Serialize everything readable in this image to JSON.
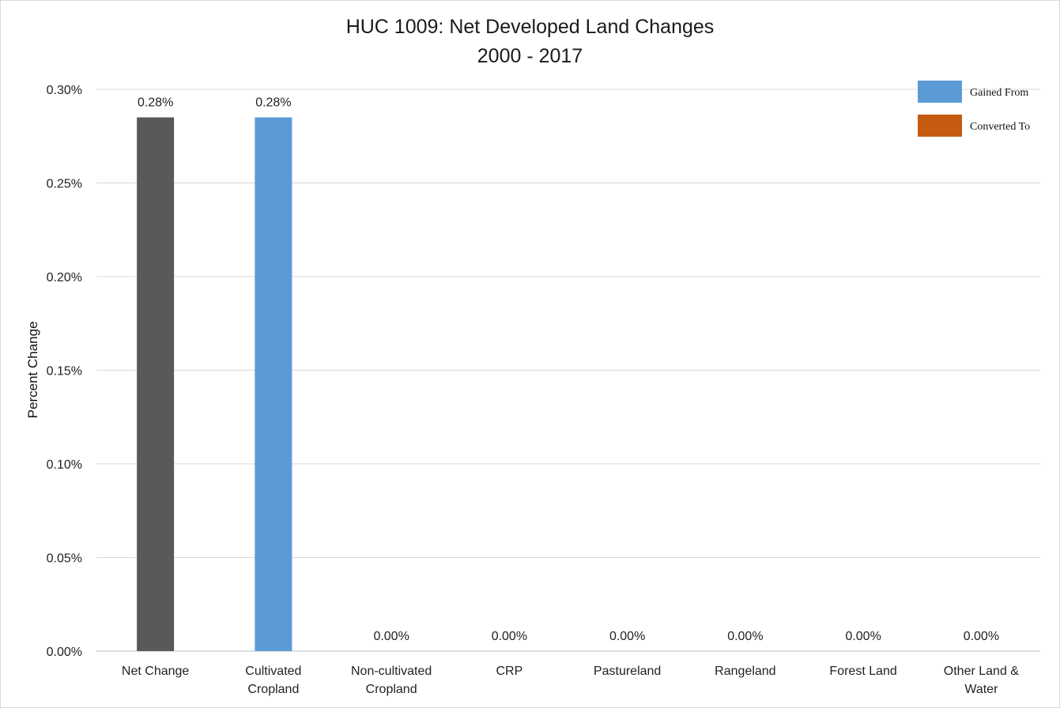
{
  "chart_data": {
    "type": "bar",
    "title": "HUC 1009: Net Developed Land Changes",
    "subtitle": "2000 - 2017",
    "ylabel": "Percent Change",
    "xlabel": "",
    "ylim": [
      0,
      0.3
    ],
    "y_ticks": [
      {
        "value": 0.0,
        "label": "0.00%"
      },
      {
        "value": 0.05,
        "label": "0.05%"
      },
      {
        "value": 0.1,
        "label": "0.10%"
      },
      {
        "value": 0.15,
        "label": "0.15%"
      },
      {
        "value": 0.2,
        "label": "0.20%"
      },
      {
        "value": 0.25,
        "label": "0.25%"
      },
      {
        "value": 0.3,
        "label": "0.30%"
      }
    ],
    "grid": true,
    "legend_position": "top-right",
    "legend": [
      {
        "name": "Gained From",
        "color": "#5b9bd5"
      },
      {
        "name": "Converted To",
        "color": "#c55a11"
      }
    ],
    "categories": [
      [
        "Net Change"
      ],
      [
        "Cultivated",
        "Cropland"
      ],
      [
        "Non-cultivated",
        "Cropland"
      ],
      [
        "CRP"
      ],
      [
        "Pastureland"
      ],
      [
        "Rangeland"
      ],
      [
        "Forest Land"
      ],
      [
        "Other Land &",
        "Water"
      ]
    ],
    "values": [
      0.285,
      0.285,
      0,
      0,
      0,
      0,
      0,
      0
    ],
    "data_labels": [
      "0.28%",
      "0.28%",
      "0.00%",
      "0.00%",
      "0.00%",
      "0.00%",
      "0.00%",
      "0.00%"
    ],
    "bar_colors": [
      "#595959",
      "#5b9bd5",
      "#5b9bd5",
      "#5b9bd5",
      "#5b9bd5",
      "#5b9bd5",
      "#5b9bd5",
      "#5b9bd5"
    ]
  }
}
